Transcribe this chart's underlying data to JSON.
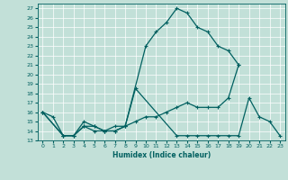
{
  "xlabel": "Humidex (Indice chaleur)",
  "xlim": [
    -0.5,
    23.5
  ],
  "ylim": [
    13,
    27.5
  ],
  "yticks": [
    13,
    14,
    15,
    16,
    17,
    18,
    19,
    20,
    21,
    22,
    23,
    24,
    25,
    26,
    27
  ],
  "xticks": [
    0,
    1,
    2,
    3,
    4,
    5,
    6,
    7,
    8,
    9,
    10,
    11,
    12,
    13,
    14,
    15,
    16,
    17,
    18,
    19,
    20,
    21,
    22,
    23
  ],
  "bg_color": "#c2e0d8",
  "grid_color": "#ffffff",
  "line_color": "#006060",
  "line1_x": [
    0,
    1,
    2,
    3,
    4,
    5,
    6,
    7,
    8,
    10,
    11,
    12,
    13,
    14,
    15,
    16,
    17,
    18,
    19
  ],
  "line1_y": [
    16.0,
    15.5,
    13.5,
    13.5,
    15.0,
    14.5,
    14.0,
    14.5,
    14.5,
    23.0,
    24.5,
    25.5,
    27.0,
    26.5,
    25.0,
    24.5,
    23.0,
    22.5,
    21.0
  ],
  "line2_x": [
    0,
    2,
    3,
    4,
    5,
    6,
    7,
    8,
    9,
    10,
    11,
    12,
    13,
    14,
    15,
    16,
    17,
    18,
    19
  ],
  "line2_y": [
    16.0,
    13.5,
    13.5,
    14.5,
    14.5,
    14.0,
    14.0,
    14.5,
    15.0,
    15.5,
    15.5,
    16.0,
    16.5,
    17.0,
    16.5,
    16.5,
    16.5,
    17.5,
    21.0
  ],
  "line3_x": [
    0,
    2,
    3,
    4,
    5,
    6,
    7,
    8,
    9,
    13,
    14,
    15,
    16,
    17,
    18,
    19,
    20,
    21,
    22,
    23
  ],
  "line3_y": [
    16.0,
    13.5,
    13.5,
    14.5,
    14.0,
    14.0,
    14.0,
    14.5,
    18.5,
    13.5,
    13.5,
    13.5,
    13.5,
    13.5,
    13.5,
    13.5,
    17.5,
    15.5,
    15.0,
    13.5
  ]
}
